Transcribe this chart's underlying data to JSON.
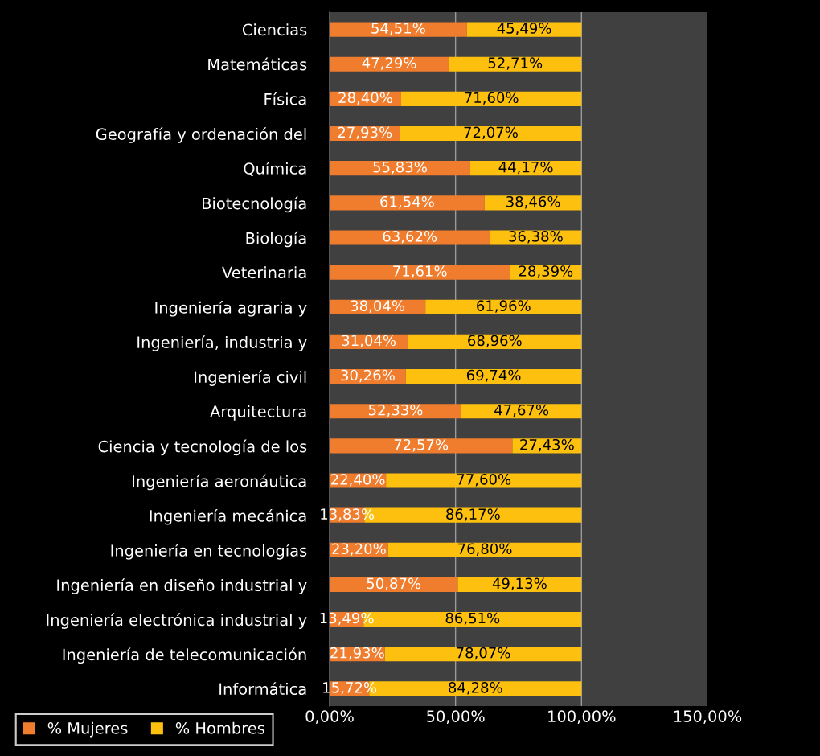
{
  "chart_data": {
    "type": "bar",
    "orientation": "horizontal",
    "stacked": true,
    "categories": [
      "Ciencias",
      "Matemáticas",
      "Física",
      "Geografía y ordenación del",
      "Química",
      "Biotecnología",
      "Biología",
      "Veterinaria",
      "Ingeniería agraria y",
      "Ingeniería, industria y",
      "Ingeniería civil",
      "Arquitectura",
      "Ciencia y tecnología de los",
      "Ingeniería aeronáutica",
      "Ingeniería mecánica",
      "Ingeniería en tecnologías",
      "Ingeniería en diseño industrial y",
      "Ingeniería electrónica industrial y",
      "Ingeniería de telecomunicación",
      "Informática"
    ],
    "series": [
      {
        "name": "% Mujeres",
        "color": "#f07d2e",
        "values": [
          54.51,
          47.29,
          28.4,
          27.93,
          55.83,
          61.54,
          63.62,
          71.61,
          38.04,
          31.04,
          30.26,
          52.33,
          72.57,
          22.4,
          13.83,
          23.2,
          50.87,
          13.49,
          21.93,
          15.72
        ],
        "value_labels": [
          "54,51%",
          "47,29%",
          "28,40%",
          "27,93%",
          "55,83%",
          "61,54%",
          "63,62%",
          "71,61%",
          "38,04%",
          "31,04%",
          "30,26%",
          "52,33%",
          "72,57%",
          "22,40%",
          "13,83%",
          "23,20%",
          "50,87%",
          "13,49%",
          "21,93%",
          "15,72%"
        ]
      },
      {
        "name": "% Hombres",
        "color": "#fdc00f",
        "values": [
          45.49,
          52.71,
          71.6,
          72.07,
          44.17,
          38.46,
          36.38,
          28.39,
          61.96,
          68.96,
          69.74,
          47.67,
          27.43,
          77.6,
          86.17,
          76.8,
          49.13,
          86.51,
          78.07,
          84.28
        ],
        "value_labels": [
          "45,49%",
          "52,71%",
          "71,60%",
          "72,07%",
          "44,17%",
          "38,46%",
          "36,38%",
          "28,39%",
          "61,96%",
          "68,96%",
          "69,74%",
          "47,67%",
          "27,43%",
          "77,60%",
          "86,17%",
          "76,80%",
          "49,13%",
          "86,51%",
          "78,07%",
          "84,28%"
        ]
      }
    ],
    "xlim": [
      0,
      150
    ],
    "xticks": [
      {
        "value": 0,
        "label": "0,00%"
      },
      {
        "value": 50,
        "label": "50,00%"
      },
      {
        "value": 100,
        "label": "100,00%"
      },
      {
        "value": 150,
        "label": "150,00%"
      }
    ],
    "grid": "x",
    "legend": "bottom left"
  }
}
